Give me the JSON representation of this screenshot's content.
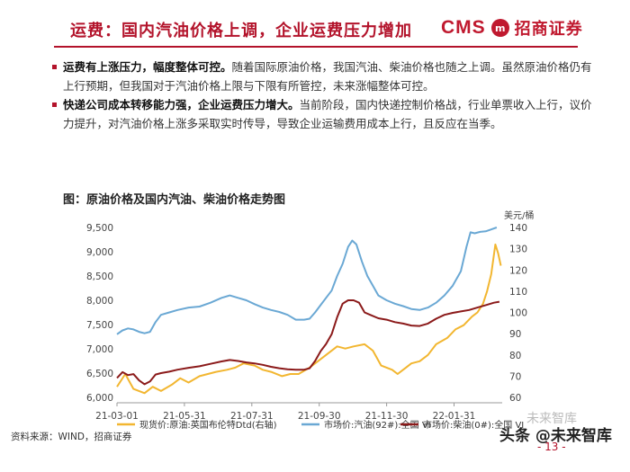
{
  "header": {
    "title": "运费：国内汽油价格上调，企业运费压力增加",
    "logo_cms": "CMS",
    "logo_badge": "m",
    "logo_text": "招商证券"
  },
  "bullets": [
    {
      "bold": "运费有上涨压力，幅度整体可控。",
      "text": "随着国际原油价格，我国汽油、柴油价格也随之上调。虽然原油价格仍有上行预期，但我国对于汽油价格上限与下限有所管控，未来涨幅整体可控。"
    },
    {
      "bold": "快递公司成本转移能力强，企业运费压力增大。",
      "text": "当前阶段，国内快递控制价格战，行业单票收入上行，议价力提升，对汽油价格上涨多采取实时传导，导致企业运输费用成本上行，且反应在当季。"
    }
  ],
  "figure_title": "图：原油价格及国内汽油、柴油价格走势图",
  "source": "资料来源：WIND，招商证券",
  "watermark": "未来智库",
  "watermark_brand": "头条 @未来智库",
  "page_number": "- 13 -",
  "colors": {
    "accent": "#b3132b",
    "crude": "#f2b630",
    "gasoline": "#6aa8d4",
    "diesel": "#8b1a1a"
  },
  "chart_data": {
    "type": "line",
    "title": "原油价格及国内汽油、柴油价格走势图",
    "x_tick_labels": [
      "21-03-01",
      "21-05-31",
      "21-07-31",
      "21-09-30",
      "21-11-30",
      "22-01-31"
    ],
    "x_range": [
      0,
      14
    ],
    "x_unit": "months since 2021-03-01",
    "left_axis": {
      "ticks": [
        "6,000",
        "6,500",
        "7,000",
        "7,500",
        "8,000",
        "8,500",
        "9,000",
        "9,500"
      ],
      "ylim": [
        6000,
        9500
      ]
    },
    "right_axis": {
      "unit_label": "美元/桶",
      "ticks": [
        "60",
        "70",
        "80",
        "90",
        "100",
        "110",
        "120",
        "130",
        "140"
      ],
      "ylim": [
        60,
        140
      ]
    },
    "legend": [
      "现货价:原油:英国布伦特Dtd(右轴)",
      "市场价:汽油(92#):全国 VI",
      "市场价:柴油(0#):全国 VI"
    ],
    "series": [
      {
        "name": "现货价:原油:英国布伦特Dtd(右轴)",
        "axis": "right",
        "color": "#f2b630",
        "points": [
          [
            0,
            65
          ],
          [
            0.3,
            71
          ],
          [
            0.6,
            64
          ],
          [
            1,
            62
          ],
          [
            1.3,
            65
          ],
          [
            1.6,
            63
          ],
          [
            2,
            66
          ],
          [
            2.3,
            69
          ],
          [
            2.6,
            67
          ],
          [
            3,
            70
          ],
          [
            3.3,
            71
          ],
          [
            3.6,
            72
          ],
          [
            4,
            73
          ],
          [
            4.3,
            74
          ],
          [
            4.6,
            76
          ],
          [
            5,
            75
          ],
          [
            5.3,
            73
          ],
          [
            5.6,
            72
          ],
          [
            6,
            70
          ],
          [
            6.3,
            71
          ],
          [
            6.6,
            71
          ],
          [
            7,
            74
          ],
          [
            7.3,
            77
          ],
          [
            7.6,
            80
          ],
          [
            8,
            84
          ],
          [
            8.3,
            83
          ],
          [
            8.6,
            84
          ],
          [
            9,
            85
          ],
          [
            9.3,
            82
          ],
          [
            9.6,
            75
          ],
          [
            10,
            73
          ],
          [
            10.2,
            71
          ],
          [
            10.5,
            74
          ],
          [
            10.7,
            76
          ],
          [
            11,
            77
          ],
          [
            11.3,
            80
          ],
          [
            11.6,
            85
          ],
          [
            12,
            88
          ],
          [
            12.3,
            92
          ],
          [
            12.6,
            94
          ],
          [
            12.9,
            98
          ],
          [
            13.1,
            100
          ],
          [
            13.3,
            104
          ],
          [
            13.45,
            110
          ],
          [
            13.6,
            118
          ],
          [
            13.75,
            132
          ],
          [
            13.85,
            128
          ],
          [
            13.95,
            122
          ]
        ]
      },
      {
        "name": "市场价:汽油(92#):全国 VI",
        "axis": "left",
        "color": "#6aa8d4",
        "points": [
          [
            0,
            7300
          ],
          [
            0.2,
            7380
          ],
          [
            0.4,
            7420
          ],
          [
            0.6,
            7400
          ],
          [
            0.8,
            7350
          ],
          [
            1,
            7320
          ],
          [
            1.2,
            7350
          ],
          [
            1.4,
            7550
          ],
          [
            1.6,
            7700
          ],
          [
            1.9,
            7750
          ],
          [
            2.2,
            7800
          ],
          [
            2.6,
            7850
          ],
          [
            3,
            7870
          ],
          [
            3.4,
            7950
          ],
          [
            3.8,
            8050
          ],
          [
            4.1,
            8100
          ],
          [
            4.4,
            8050
          ],
          [
            4.7,
            8000
          ],
          [
            5,
            7920
          ],
          [
            5.3,
            7850
          ],
          [
            5.6,
            7800
          ],
          [
            5.9,
            7760
          ],
          [
            6.2,
            7700
          ],
          [
            6.5,
            7600
          ],
          [
            6.8,
            7600
          ],
          [
            7,
            7620
          ],
          [
            7.2,
            7750
          ],
          [
            7.4,
            7900
          ],
          [
            7.6,
            8050
          ],
          [
            7.8,
            8200
          ],
          [
            8,
            8500
          ],
          [
            8.2,
            8750
          ],
          [
            8.4,
            9100
          ],
          [
            8.55,
            9230
          ],
          [
            8.7,
            9150
          ],
          [
            8.9,
            8800
          ],
          [
            9.1,
            8500
          ],
          [
            9.3,
            8300
          ],
          [
            9.5,
            8100
          ],
          [
            9.8,
            8000
          ],
          [
            10.1,
            7930
          ],
          [
            10.4,
            7880
          ],
          [
            10.7,
            7820
          ],
          [
            11,
            7800
          ],
          [
            11.3,
            7850
          ],
          [
            11.6,
            7950
          ],
          [
            11.9,
            8100
          ],
          [
            12.2,
            8300
          ],
          [
            12.5,
            8600
          ],
          [
            12.7,
            9100
          ],
          [
            12.85,
            9400
          ],
          [
            13,
            9380
          ],
          [
            13.2,
            9410
          ],
          [
            13.4,
            9420
          ],
          [
            13.6,
            9460
          ],
          [
            13.8,
            9500
          ]
        ]
      },
      {
        "name": "市场价:柴油(0#):全国 VI",
        "axis": "left",
        "color": "#8b1a1a",
        "points": [
          [
            0,
            6400
          ],
          [
            0.2,
            6520
          ],
          [
            0.4,
            6460
          ],
          [
            0.6,
            6480
          ],
          [
            0.8,
            6350
          ],
          [
            1,
            6270
          ],
          [
            1.2,
            6330
          ],
          [
            1.4,
            6470
          ],
          [
            1.6,
            6500
          ],
          [
            1.9,
            6530
          ],
          [
            2.2,
            6570
          ],
          [
            2.6,
            6610
          ],
          [
            3,
            6640
          ],
          [
            3.4,
            6690
          ],
          [
            3.8,
            6740
          ],
          [
            4.1,
            6770
          ],
          [
            4.4,
            6750
          ],
          [
            4.7,
            6720
          ],
          [
            5,
            6700
          ],
          [
            5.3,
            6670
          ],
          [
            5.6,
            6630
          ],
          [
            5.9,
            6600
          ],
          [
            6.2,
            6580
          ],
          [
            6.5,
            6570
          ],
          [
            6.8,
            6570
          ],
          [
            7,
            6600
          ],
          [
            7.2,
            6750
          ],
          [
            7.4,
            6950
          ],
          [
            7.6,
            7100
          ],
          [
            7.8,
            7300
          ],
          [
            8,
            7650
          ],
          [
            8.2,
            7930
          ],
          [
            8.4,
            8000
          ],
          [
            8.6,
            8000
          ],
          [
            8.8,
            7950
          ],
          [
            9,
            7750
          ],
          [
            9.2,
            7700
          ],
          [
            9.5,
            7630
          ],
          [
            9.8,
            7600
          ],
          [
            10.1,
            7550
          ],
          [
            10.4,
            7520
          ],
          [
            10.7,
            7480
          ],
          [
            11,
            7470
          ],
          [
            11.3,
            7520
          ],
          [
            11.6,
            7620
          ],
          [
            11.9,
            7700
          ],
          [
            12.2,
            7740
          ],
          [
            12.5,
            7770
          ],
          [
            12.8,
            7800
          ],
          [
            13.1,
            7850
          ],
          [
            13.4,
            7900
          ],
          [
            13.7,
            7950
          ],
          [
            13.9,
            7970
          ]
        ]
      }
    ]
  }
}
